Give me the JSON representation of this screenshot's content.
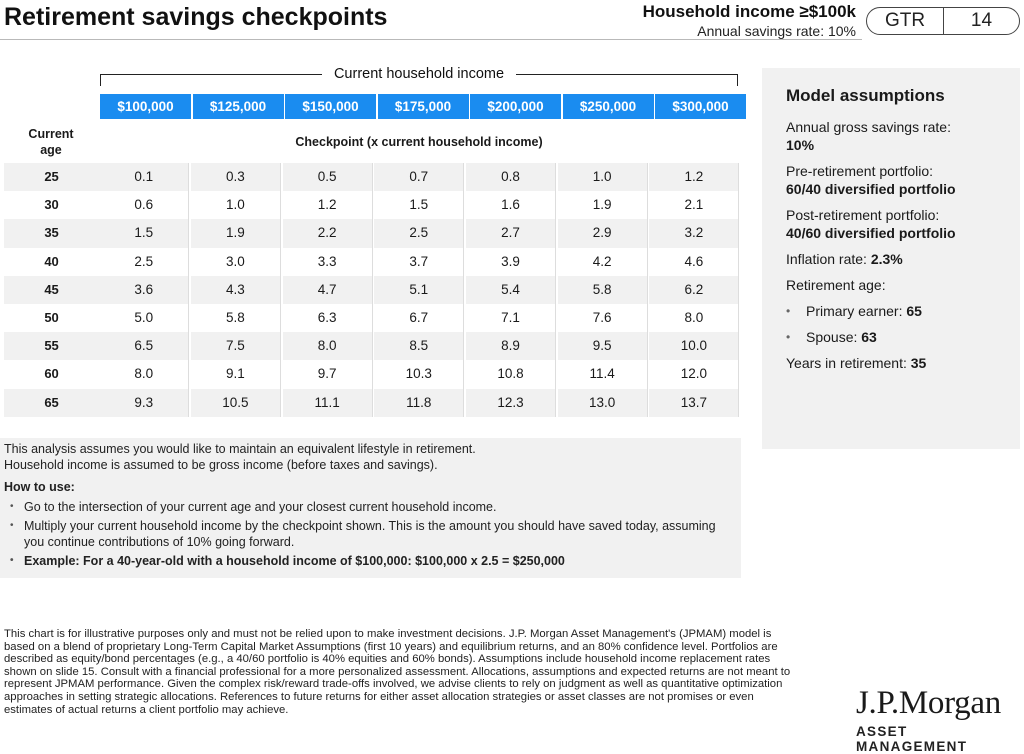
{
  "header": {
    "title": "Retirement savings checkpoints",
    "income_line": "Household income ≥$100k",
    "savings_line": "Annual savings rate: 10%",
    "gtr_label": "GTR",
    "page_number": "14"
  },
  "table": {
    "group_label": "Current household income",
    "columns": [
      "$100,000",
      "$125,000",
      "$150,000",
      "$175,000",
      "$200,000",
      "$250,000",
      "$300,000"
    ],
    "age_header": "Current\nage",
    "checkpoint_label": "Checkpoint (x current household income)",
    "rows": [
      {
        "age": "25",
        "values": [
          "0.1",
          "0.3",
          "0.5",
          "0.7",
          "0.8",
          "1.0",
          "1.2"
        ]
      },
      {
        "age": "30",
        "values": [
          "0.6",
          "1.0",
          "1.2",
          "1.5",
          "1.6",
          "1.9",
          "2.1"
        ]
      },
      {
        "age": "35",
        "values": [
          "1.5",
          "1.9",
          "2.2",
          "2.5",
          "2.7",
          "2.9",
          "3.2"
        ]
      },
      {
        "age": "40",
        "values": [
          "2.5",
          "3.0",
          "3.3",
          "3.7",
          "3.9",
          "4.2",
          "4.6"
        ]
      },
      {
        "age": "45",
        "values": [
          "3.6",
          "4.3",
          "4.7",
          "5.1",
          "5.4",
          "5.8",
          "6.2"
        ]
      },
      {
        "age": "50",
        "values": [
          "5.0",
          "5.8",
          "6.3",
          "6.7",
          "7.1",
          "7.6",
          "8.0"
        ]
      },
      {
        "age": "55",
        "values": [
          "6.5",
          "7.5",
          "8.0",
          "8.5",
          "8.9",
          "9.5",
          "10.0"
        ]
      },
      {
        "age": "60",
        "values": [
          "8.0",
          "9.1",
          "9.7",
          "10.3",
          "10.8",
          "11.4",
          "12.0"
        ]
      },
      {
        "age": "65",
        "values": [
          "9.3",
          "10.5",
          "11.1",
          "11.8",
          "12.3",
          "13.0",
          "13.7"
        ]
      }
    ]
  },
  "assumptions": {
    "title": "Model assumptions",
    "savings_label": "Annual gross savings rate:",
    "savings_value": "10%",
    "pre_label": "Pre-retirement portfolio:",
    "pre_value": "60/40 diversified portfolio",
    "post_label": "Post-retirement portfolio:",
    "post_value": "40/60 diversified portfolio",
    "inflation_label": "Inflation rate:",
    "inflation_value": "2.3%",
    "ret_age_label": "Retirement age:",
    "primary_label": "Primary earner:",
    "primary_value": "65",
    "spouse_label": "Spouse:",
    "spouse_value": "63",
    "years_label": "Years in retirement:",
    "years_value": "35"
  },
  "how": {
    "line1": "This analysis assumes you would like to maintain an equivalent lifestyle in retirement.",
    "line2": "Household income is assumed to be gross income (before taxes and savings).",
    "heading": "How to use:",
    "bullet1": "Go to the intersection of your current age and your closest current household income.",
    "bullet2": "Multiply your current household income by the checkpoint shown. This is the amount you should have saved today, assuming you continue contributions of 10% going forward.",
    "bullet3": "Example: For a 40-year-old with a household income of $100,000: $100,000 x 2.5 = $250,000"
  },
  "disclaimer": "This chart is for illustrative purposes only and must not be relied upon to make investment decisions. J.P. Morgan Asset Management's (JPMAM) model is based on a blend of proprietary Long-Term Capital Market Assumptions (first 10 years) and equilibrium returns, and an 80% confidence level. Portfolios are described as equity/bond percentages (e.g., a 40/60 portfolio is 40% equities and 60% bonds). Assumptions include household income replacement rates shown on slide 15. Consult with a financial professional for a more personalized assessment. Allocations, assumptions and expected returns are not meant to represent JPMAM performance. Given the complex risk/reward trade-offs involved, we advise clients to rely on judgment as well as quantitative optimization approaches in setting strategic allocations. References to future returns for either asset allocation strategies or asset classes are not promises or even estimates of actual returns a client portfolio may achieve.",
  "logo": {
    "name": "J.P.Morgan",
    "sub": "ASSET MANAGEMENT"
  }
}
